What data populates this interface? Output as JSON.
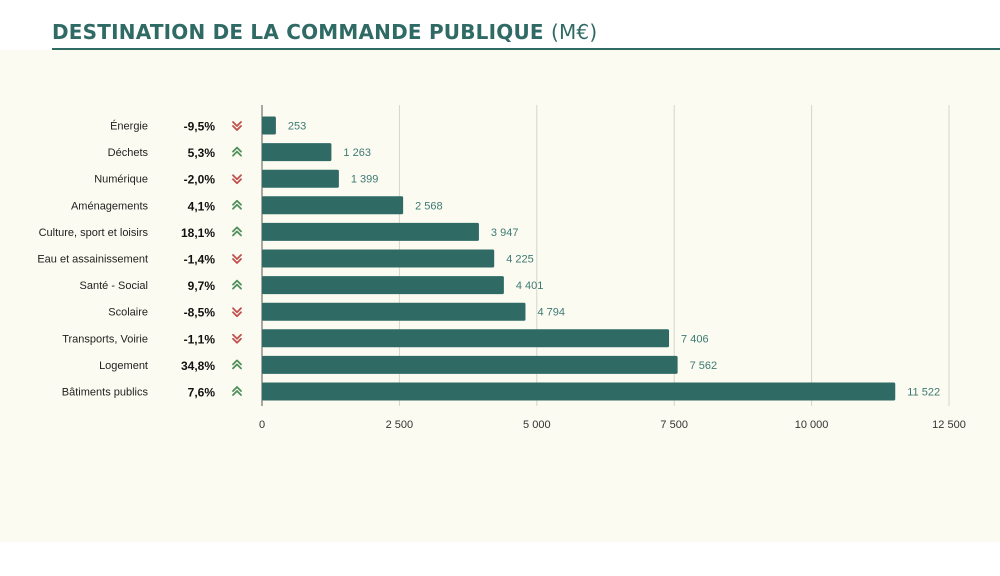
{
  "header": {
    "title": "DESTINATION DE LA COMMANDE PUBLIQUE",
    "unit": "(M€)"
  },
  "colors": {
    "bar": "#2f6a65",
    "up": "#4f8f5a",
    "down": "#c0504d",
    "accent": "#2f6a65"
  },
  "chart_data": {
    "type": "bar",
    "orientation": "horizontal",
    "categories": [
      "Énergie",
      "Déchets",
      "Numérique",
      "Aménagements",
      "Culture, sport et loisirs",
      "Eau et assainissement",
      "Santé - Social",
      "Scolaire",
      "Transports, Voirie",
      "Logement",
      "Bâtiments publics"
    ],
    "values": [
      253,
      1263,
      1399,
      2568,
      3947,
      4225,
      4401,
      4794,
      7406,
      7562,
      11522
    ],
    "value_labels": [
      "253",
      "1 263",
      "1 399",
      "2 568",
      "3 947",
      "4 225",
      "4 401",
      "4 794",
      "7 406",
      "7 562",
      "11 522"
    ],
    "changes": [
      "-9,5%",
      "5,3%",
      "-2,0%",
      "4,1%",
      "18,1%",
      "-1,4%",
      "9,7%",
      "-8,5%",
      "-1,1%",
      "34,8%",
      "7,6%"
    ],
    "directions": [
      "down",
      "up",
      "down",
      "up",
      "up",
      "down",
      "up",
      "down",
      "down",
      "up",
      "up"
    ],
    "xlim": [
      0,
      12500
    ],
    "ticks": [
      0,
      2500,
      5000,
      7500,
      10000,
      12500
    ],
    "tick_labels": [
      "0",
      "2 500",
      "5 000",
      "7 500",
      "10 000",
      "12 500"
    ],
    "grid": true,
    "legend": "none"
  }
}
